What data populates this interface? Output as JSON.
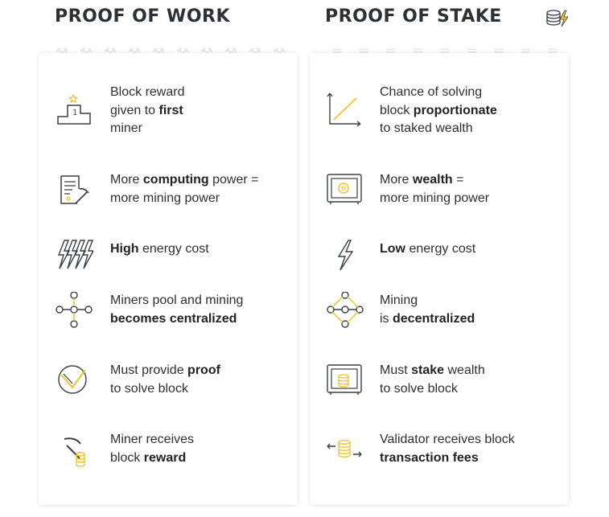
{
  "pow": {
    "title": "PROOF OF WORK",
    "items": [
      {
        "icon": "podium-first-place-icon",
        "lines": [
          [
            {
              "t": "Block reward"
            }
          ],
          [
            {
              "t": "given to "
            },
            {
              "t": "first",
              "b": true
            }
          ],
          [
            {
              "t": "miner"
            }
          ]
        ]
      },
      {
        "icon": "document-pickaxe-icon",
        "lines": [
          [
            {
              "t": "More "
            },
            {
              "t": "computing",
              "b": true
            },
            {
              "t": " power ="
            }
          ],
          [
            {
              "t": "more mining power"
            }
          ]
        ]
      },
      {
        "icon": "lightning-bolts-icon",
        "lines": [
          [
            {
              "t": "High",
              "b": true
            },
            {
              "t": " energy cost"
            }
          ]
        ]
      },
      {
        "icon": "centralized-network-icon",
        "lines": [
          [
            {
              "t": "Miners pool and mining"
            }
          ],
          [
            {
              "t": "becomes centralized",
              "b": true
            }
          ]
        ]
      },
      {
        "icon": "checkmark-circle-icon",
        "lines": [
          [
            {
              "t": "Must provide "
            },
            {
              "t": "proof",
              "b": true
            }
          ],
          [
            {
              "t": "to solve block"
            }
          ]
        ]
      },
      {
        "icon": "pickaxe-coins-icon",
        "lines": [
          [
            {
              "t": "Miner receives"
            }
          ],
          [
            {
              "t": "block "
            },
            {
              "t": "reward",
              "b": true
            }
          ]
        ]
      }
    ]
  },
  "pos": {
    "title": "PROOF OF STAKE",
    "items": [
      {
        "icon": "proportional-graph-icon",
        "lines": [
          [
            {
              "t": "Chance of solving"
            }
          ],
          [
            {
              "t": "block "
            },
            {
              "t": "proportionate",
              "b": true
            }
          ],
          [
            {
              "t": "to staked wealth"
            }
          ]
        ]
      },
      {
        "icon": "safe-icon",
        "lines": [
          [
            {
              "t": "More "
            },
            {
              "t": "wealth",
              "b": true
            },
            {
              "t": " ="
            }
          ],
          [
            {
              "t": "more mining power"
            }
          ]
        ]
      },
      {
        "icon": "lightning-bolt-icon",
        "lines": [
          [
            {
              "t": "Low",
              "b": true
            },
            {
              "t": " energy cost"
            }
          ]
        ]
      },
      {
        "icon": "decentralized-network-icon",
        "lines": [
          [
            {
              "t": "Mining"
            }
          ],
          [
            {
              "t": "is "
            },
            {
              "t": "decentralized",
              "b": true
            }
          ]
        ]
      },
      {
        "icon": "safe-coins-icon",
        "lines": [
          [
            {
              "t": "Must "
            },
            {
              "t": "stake",
              "b": true
            },
            {
              "t": " wealth"
            }
          ],
          [
            {
              "t": "to solve block"
            }
          ]
        ]
      },
      {
        "icon": "coins-exchange-icon",
        "lines": [
          [
            {
              "t": "Validator receives block"
            }
          ],
          [
            {
              "t": "transaction fees",
              "b": true
            }
          ]
        ]
      }
    ]
  },
  "colors": {
    "accent": "#f2c12e",
    "icon_stroke": "#3a3f44",
    "text": "#2f2f2f",
    "title": "#2d3135",
    "decoration": "#e6e6e6"
  }
}
